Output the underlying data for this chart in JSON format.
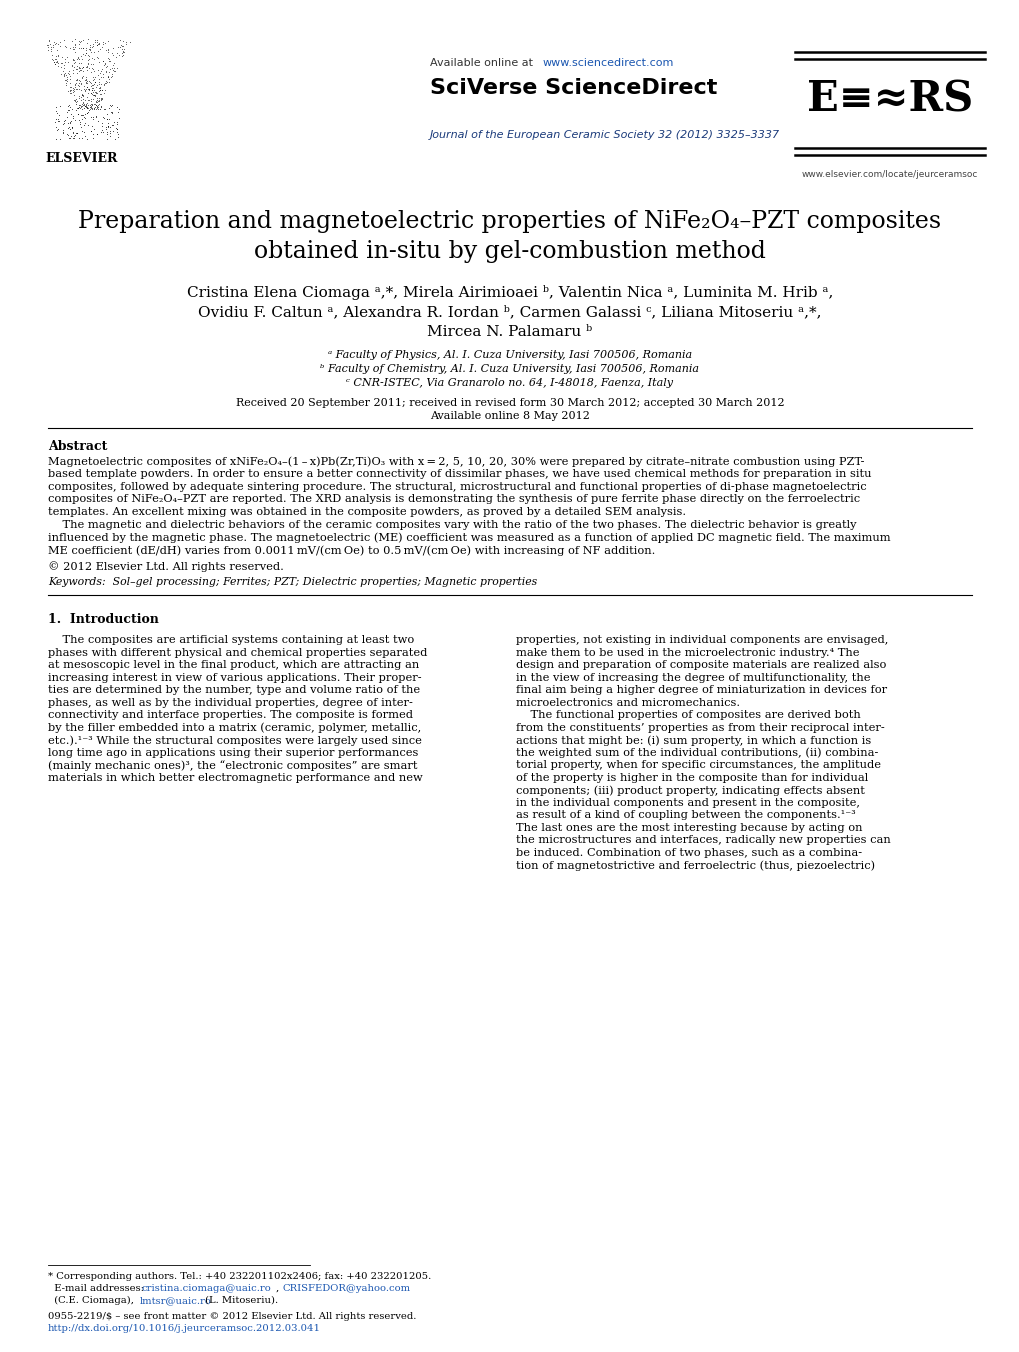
{
  "bg_color": "#ffffff",
  "journal_line": "Journal of the European Ceramic Society 32 (2012) 3325–3337",
  "available_online_text": "Available online at ",
  "available_online_url": "www.sciencedirect.com",
  "sciverse": "SciVerse ScienceDirect",
  "url_right": "www.elsevier.com/locate/jeurceramsoc",
  "title_line1": "Preparation and magnetoelectric properties of NiFe₂O₄–PZT composites",
  "title_line2": "obtained in-situ by gel-combustion method",
  "author_line1": "Cristina Elena Ciomaga ᵃ,*, Mirela Airimioaei ᵇ, Valentin Nica ᵃ, Luminita M. Hrib ᵃ,",
  "author_line2": "Ovidiu F. Caltun ᵃ, Alexandra R. Iordan ᵇ, Carmen Galassi ᶜ, Liliana Mitoseriu ᵃ,*,",
  "author_line3": "Mircea N. Palamaru ᵇ",
  "affil_a": "ᵃ Faculty of Physics, Al. I. Cuza University, Iasi 700506, Romania",
  "affil_b": "ᵇ Faculty of Chemistry, Al. I. Cuza University, Iasi 700506, Romania",
  "affil_c": "ᶜ CNR-ISTEC, Via Granarolo no. 64, I-48018, Faenza, Italy",
  "received": "Received 20 September 2011; received in revised form 30 March 2012; accepted 30 March 2012",
  "online_date": "Available online 8 May 2012",
  "abstract_title": "Abstract",
  "abstract_lines": [
    "Magnetoelectric composites of xNiFe₂O₄–(1 – x)Pb(Zr,Ti)O₃ with x = 2, 5, 10, 20, 30% were prepared by citrate–nitrate combustion using PZT-",
    "based template powders. In order to ensure a better connectivity of dissimilar phases, we have used chemical methods for preparation in situ",
    "composites, followed by adequate sintering procedure. The structural, microstructural and functional properties of di-phase magnetoelectric",
    "composites of NiFe₂O₄–PZT are reported. The XRD analysis is demonstrating the synthesis of pure ferrite phase directly on the ferroelectric",
    "templates. An excellent mixing was obtained in the composite powders, as proved by a detailed SEM analysis.",
    "    The magnetic and dielectric behaviors of the ceramic composites vary with the ratio of the two phases. The dielectric behavior is greatly",
    "influenced by the magnetic phase. The magnetoelectric (ME) coefficient was measured as a function of applied DC magnetic field. The maximum",
    "ME coefficient (dE/dH) varies from 0.0011 mV/(cm Oe) to 0.5 mV/(cm Oe) with increasing of NF addition."
  ],
  "copyright": "© 2012 Elsevier Ltd. All rights reserved.",
  "keywords": "Sol–gel processing; Ferrites; PZT; Dielectric properties; Magnetic properties",
  "intro_title": "1.  Introduction",
  "col1_lines": [
    "    The composites are artificial systems containing at least two",
    "phases with different physical and chemical properties separated",
    "at mesoscopic level in the final product, which are attracting an",
    "increasing interest in view of various applications. Their proper-",
    "ties are determined by the number, type and volume ratio of the",
    "phases, as well as by the individual properties, degree of inter-",
    "connectivity and interface properties. The composite is formed",
    "by the filler embedded into a matrix (ceramic, polymer, metallic,",
    "etc.).¹⁻³ While the structural composites were largely used since",
    "long time ago in applications using their superior performances",
    "(mainly mechanic ones)³, the “electronic composites” are smart",
    "materials in which better electromagnetic performance and new"
  ],
  "col2_lines": [
    "properties, not existing in individual components are envisaged,",
    "make them to be used in the microelectronic industry.⁴ The",
    "design and preparation of composite materials are realized also",
    "in the view of increasing the degree of multifunctionality, the",
    "final aim being a higher degree of miniaturization in devices for",
    "microelectronics and micromechanics.",
    "    The functional properties of composites are derived both",
    "from the constituents’ properties as from their reciprocal inter-",
    "actions that might be: (i) sum property, in which a function is",
    "the weighted sum of the individual contributions, (ii) combina-",
    "torial property, when for specific circumstances, the amplitude",
    "of the property is higher in the composite than for individual",
    "components; (iii) product property, indicating effects absent",
    "in the individual components and present in the composite,",
    "as result of a kind of coupling between the components.¹⁻³",
    "The last ones are the most interesting because by acting on",
    "the microstructures and interfaces, radically new properties can",
    "be induced. Combination of two phases, such as a combina-",
    "tion of magnetostrictive and ferroelectric (thus, piezoelectric)"
  ],
  "foot_corr": "* Corresponding authors. Tel.: +40 232201102x2406; fax: +40 232201205.",
  "foot_email_label": "  E-mail addresses: ",
  "foot_email1": "cristina.ciomaga@uaic.ro",
  "foot_email_mid": ", ",
  "foot_email2": "CRISFEDOR@yahoo.com",
  "foot_line3a": "  (C.E. Ciomaga), ",
  "foot_email3": "lmtsr@uaic.ro",
  "foot_line3b": " (L. Mitoseriu).",
  "foot_issn": "0955-2219/$ – see front matter © 2012 Elsevier Ltd. All rights reserved.",
  "foot_doi": "http://dx.doi.org/10.1016/j.jeurceramsoc.2012.03.041",
  "blue": "#1a56b0",
  "dark_blue": "#1a3a7a",
  "link_blue": "#1a56b0"
}
